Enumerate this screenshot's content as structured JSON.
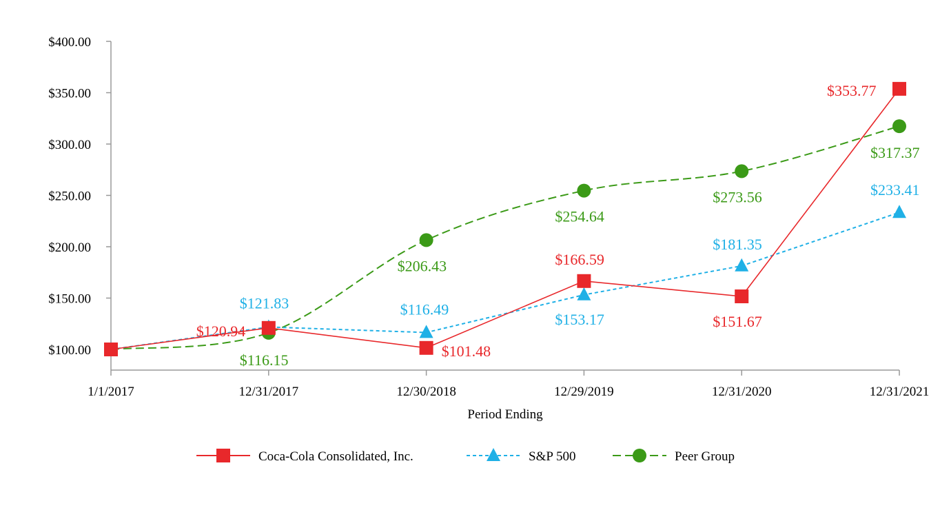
{
  "chart_data": {
    "type": "line",
    "title": "",
    "xlabel": "Period Ending",
    "ylabel": "",
    "categories": [
      "1/1/2017",
      "12/31/2017",
      "12/30/2018",
      "12/29/2019",
      "12/31/2020",
      "12/31/2021"
    ],
    "yticks": [
      "$100.00",
      "$150.00",
      "$200.00",
      "$250.00",
      "$300.00",
      "$350.00",
      "$400.00"
    ],
    "ytick_values": [
      100,
      150,
      200,
      250,
      300,
      350,
      400
    ],
    "ylim": [
      80,
      400
    ],
    "grid": false,
    "legend_position": "bottom",
    "series": [
      {
        "name": "Coca-Cola Consolidated, Inc.",
        "color": "#e8282b",
        "marker": "square",
        "line_style": "solid",
        "values": [
          100,
          120.94,
          101.48,
          166.59,
          151.67,
          353.77
        ],
        "labels": [
          "",
          "$120.94",
          "$101.48",
          "$166.59",
          "$151.67",
          "$353.77"
        ]
      },
      {
        "name": "S&P 500",
        "color": "#1fb0e6",
        "marker": "triangle",
        "line_style": "dashed",
        "values": [
          100,
          121.83,
          116.49,
          153.17,
          181.35,
          233.41
        ],
        "labels": [
          "",
          "$121.83",
          "$116.49",
          "$153.17",
          "$181.35",
          "$233.41"
        ]
      },
      {
        "name": "Peer Group",
        "color": "#3b9a17",
        "marker": "circle",
        "line_style": "long-dashed",
        "values": [
          100,
          116.15,
          206.43,
          254.64,
          273.56,
          317.37
        ],
        "labels": [
          "",
          "$116.15",
          "$206.43",
          "$254.64",
          "$273.56",
          "$317.37"
        ]
      }
    ]
  }
}
